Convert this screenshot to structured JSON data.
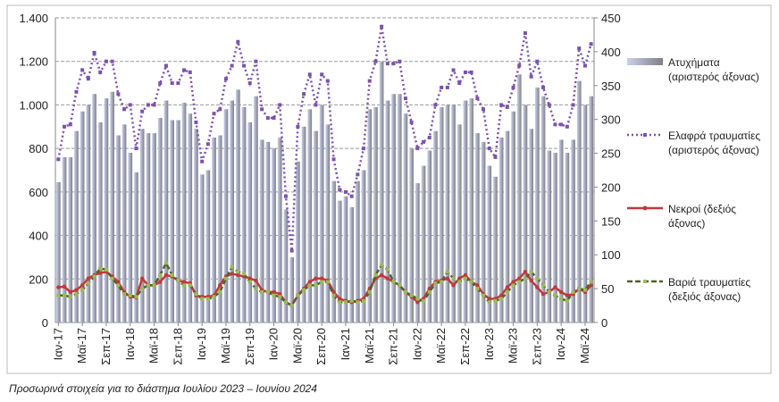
{
  "chart_data": {
    "type": "bar",
    "categories": [
      "Ιαν-17",
      null,
      null,
      null,
      "Μαϊ-17",
      null,
      null,
      null,
      "Σεπ-17",
      null,
      null,
      null,
      "Ιαν-18",
      null,
      null,
      null,
      "Μαϊ-18",
      null,
      null,
      null,
      "Σεπ-18",
      null,
      null,
      null,
      "Ιαν-19",
      null,
      null,
      null,
      "Μαϊ-19",
      null,
      null,
      null,
      "Σεπ-19",
      null,
      null,
      null,
      "Ιαν-20",
      null,
      null,
      null,
      "Μαϊ-20",
      null,
      null,
      null,
      "Σεπ-20",
      null,
      null,
      null,
      "Ιαν-21",
      null,
      null,
      null,
      "Μαϊ-21",
      null,
      null,
      null,
      "Σεπ-21",
      null,
      null,
      null,
      "Ιαν-22",
      null,
      null,
      null,
      "Μαϊ-22",
      null,
      null,
      null,
      "Σεπ-22",
      null,
      null,
      null,
      "Ιαν-23",
      null,
      null,
      null,
      "Μαϊ-23",
      null,
      null,
      null,
      "Σεπ-23",
      null,
      null,
      null,
      "Ιαν-24",
      null,
      null,
      null,
      "Μαϊ-24",
      null
    ],
    "series": [
      {
        "name": "Ατυχήματα (αριστερός άξονας)",
        "type": "bar",
        "color": "#aab4dc",
        "values": [
          645,
          760,
          760,
          880,
          970,
          1000,
          1050,
          920,
          1030,
          1060,
          860,
          910,
          780,
          690,
          890,
          870,
          870,
          940,
          1020,
          930,
          930,
          1010,
          960,
          890,
          680,
          700,
          850,
          860,
          980,
          1020,
          1070,
          990,
          920,
          1040,
          840,
          830,
          800,
          850,
          520,
          300,
          740,
          900,
          980,
          880,
          1000,
          910,
          650,
          560,
          580,
          530,
          650,
          700,
          980,
          990,
          1200,
          1020,
          1050,
          1050,
          960,
          800,
          640,
          720,
          790,
          880,
          990,
          1000,
          1000,
          910,
          1020,
          1030,
          870,
          830,
          720,
          670,
          850,
          880,
          970,
          1140,
          1000,
          890,
          1080,
          1040,
          790,
          780,
          840,
          780,
          840,
          1110,
          1000,
          1040
        ]
      },
      {
        "name": "Ελαφρά τραυματίες (αριστερός άξονας)",
        "type": "line",
        "color": "#7b52ae",
        "dash": "2 3",
        "marker": "square",
        "values": [
          750,
          900,
          910,
          1060,
          1160,
          1120,
          1240,
          1150,
          1200,
          1200,
          1050,
          980,
          1000,
          800,
          970,
          1000,
          1000,
          1100,
          1180,
          1100,
          1100,
          1160,
          1150,
          920,
          740,
          820,
          960,
          980,
          1120,
          1180,
          1290,
          1180,
          1100,
          1200,
          980,
          940,
          940,
          1000,
          580,
          330,
          900,
          1050,
          1140,
          1000,
          1140,
          1110,
          750,
          610,
          600,
          580,
          680,
          800,
          1110,
          1200,
          1360,
          1190,
          1190,
          1200,
          1030,
          920,
          800,
          830,
          850,
          1000,
          1080,
          1080,
          1160,
          1100,
          1150,
          1150,
          1030,
          980,
          800,
          760,
          1000,
          990,
          1080,
          1180,
          1330,
          1130,
          1200,
          1080,
          1000,
          910,
          910,
          900,
          1000,
          1260,
          1180,
          1280
        ]
      },
      {
        "name": "Νεκροί (δεξιός άξονας)",
        "type": "line",
        "axis": "y2",
        "color": "#c0393b",
        "marker": "circle",
        "values": [
          52,
          53,
          45,
          48,
          55,
          65,
          70,
          73,
          75,
          68,
          60,
          45,
          38,
          37,
          65,
          55,
          55,
          60,
          70,
          68,
          62,
          60,
          58,
          40,
          38,
          38,
          40,
          55,
          68,
          72,
          70,
          68,
          65,
          62,
          48,
          45,
          45,
          42,
          30,
          25,
          40,
          50,
          60,
          65,
          65,
          62,
          45,
          35,
          32,
          30,
          32,
          35,
          50,
          65,
          70,
          65,
          60,
          55,
          45,
          38,
          30,
          35,
          50,
          60,
          62,
          65,
          55,
          65,
          70,
          60,
          55,
          42,
          35,
          35,
          40,
          52,
          60,
          65,
          75,
          62,
          52,
          42,
          45,
          52,
          45,
          40,
          42,
          50,
          45,
          55
        ]
      },
      {
        "name": "Βαριά τραυματίες (δεξιός άξονας)",
        "type": "line",
        "axis": "y2",
        "color": "#4f6228",
        "dash": "6 3",
        "marker": "square",
        "marker_color": "#9bbb59",
        "values": [
          40,
          40,
          38,
          42,
          48,
          58,
          68,
          80,
          78,
          65,
          55,
          42,
          40,
          38,
          50,
          55,
          55,
          70,
          88,
          70,
          62,
          55,
          55,
          42,
          35,
          35,
          38,
          45,
          65,
          82,
          75,
          72,
          60,
          50,
          45,
          45,
          40,
          38,
          30,
          25,
          40,
          48,
          55,
          55,
          60,
          60,
          40,
          30,
          30,
          32,
          30,
          32,
          45,
          70,
          85,
          78,
          60,
          55,
          45,
          40,
          35,
          32,
          45,
          58,
          60,
          75,
          65,
          60,
          65,
          60,
          50,
          40,
          30,
          32,
          35,
          45,
          55,
          60,
          65,
          75,
          65,
          55,
          45,
          40,
          35,
          32,
          45,
          50,
          48,
          60
        ]
      }
    ],
    "ylim": [
      0,
      1400
    ],
    "yticks": [
      0,
      200,
      400,
      600,
      800,
      {
        "value": 1000,
        "label": "1.000"
      },
      {
        "value": 1200,
        "label": "1.200"
      },
      {
        "value": 1400,
        "label": "1.400"
      }
    ],
    "y2lim": [
      0,
      450
    ],
    "y2ticks": [
      0,
      50,
      100,
      150,
      200,
      250,
      300,
      350,
      400,
      450
    ],
    "grid": true,
    "note": "Προσωρινά στοιχεία για το διάστημα Ιουλίου 2023 – Ιουνίου 2024"
  }
}
